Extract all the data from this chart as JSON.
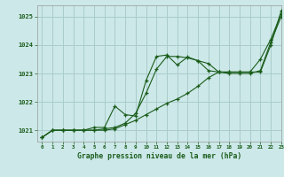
{
  "title": "Graphe pression niveau de la mer (hPa)",
  "background_color": "#cce8e8",
  "grid_color": "#aacccc",
  "line_color": "#1a5c1a",
  "xlim": [
    -0.5,
    23
  ],
  "ylim": [
    1020.6,
    1025.4
  ],
  "xticks": [
    0,
    1,
    2,
    3,
    4,
    5,
    6,
    7,
    8,
    9,
    10,
    11,
    12,
    13,
    14,
    15,
    16,
    17,
    18,
    19,
    20,
    21,
    22,
    23
  ],
  "yticks": [
    1021,
    1022,
    1023,
    1024,
    1025
  ],
  "series1": {
    "x": [
      0,
      1,
      2,
      3,
      4,
      5,
      6,
      7,
      8,
      9,
      10,
      11,
      12,
      13,
      14,
      15,
      16,
      17,
      18,
      19,
      20,
      21,
      22,
      23
    ],
    "y": [
      1020.75,
      1021.0,
      1021.0,
      1021.0,
      1021.0,
      1021.0,
      1021.0,
      1021.05,
      1021.2,
      1021.35,
      1021.55,
      1021.75,
      1021.95,
      1022.1,
      1022.3,
      1022.55,
      1022.85,
      1023.05,
      1023.05,
      1023.05,
      1023.05,
      1023.05,
      1024.0,
      1025.2
    ]
  },
  "series2": {
    "x": [
      0,
      1,
      2,
      3,
      4,
      5,
      6,
      7,
      8,
      9,
      10,
      11,
      12,
      13,
      14,
      15,
      16,
      17,
      18,
      19,
      20,
      21,
      22,
      23
    ],
    "y": [
      1020.75,
      1021.0,
      1021.0,
      1021.0,
      1021.0,
      1021.0,
      1021.05,
      1021.1,
      1021.25,
      1021.6,
      1022.3,
      1023.15,
      1023.6,
      1023.6,
      1023.55,
      1023.45,
      1023.35,
      1023.05,
      1023.0,
      1023.0,
      1023.0,
      1023.1,
      1024.1,
      1025.0
    ]
  },
  "series3": {
    "x": [
      0,
      1,
      2,
      3,
      4,
      5,
      6,
      7,
      8,
      9,
      10,
      11,
      12,
      13,
      14,
      15,
      16,
      17,
      18,
      19,
      20,
      21,
      22,
      23
    ],
    "y": [
      1020.75,
      1021.0,
      1021.0,
      1021.0,
      1021.0,
      1021.1,
      1021.1,
      1021.85,
      1021.55,
      1021.5,
      1022.75,
      1023.6,
      1023.65,
      1023.3,
      1023.58,
      1023.45,
      1023.1,
      1023.05,
      1023.05,
      1023.05,
      1023.05,
      1023.5,
      1024.2,
      1025.1
    ]
  }
}
